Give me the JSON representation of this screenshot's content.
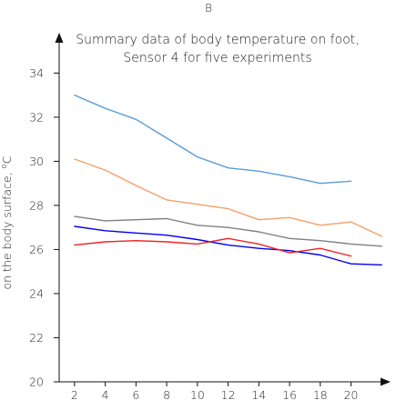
{
  "chart_data": {
    "type": "line",
    "panel_label": "B",
    "title_lines": [
      "Summary data of body temperature on foot,",
      "Sensor 4 for five experiments"
    ],
    "xlabel": "",
    "ylabel_main": "on the body surface, ",
    "ylabel_sup": "o",
    "ylabel_unit": "C",
    "xlim": [
      1,
      22.1
    ],
    "ylim": [
      20,
      35.5
    ],
    "xticks": [
      2,
      4,
      6,
      8,
      10,
      12,
      14,
      16,
      18,
      20
    ],
    "yticks": [
      20,
      22,
      24,
      26,
      28,
      30,
      32,
      34
    ],
    "grid": false,
    "series": [
      {
        "color": "#5b9bd5",
        "x": [
          2,
          4,
          6,
          8,
          10,
          12,
          14,
          16,
          18,
          20
        ],
        "y": [
          33.0,
          32.4,
          31.9,
          31.05,
          30.2,
          29.7,
          29.55,
          29.3,
          29.0,
          29.1
        ]
      },
      {
        "color": "#f4a06a",
        "x": [
          2,
          4,
          6,
          8,
          10,
          12,
          14,
          16,
          18,
          20,
          22
        ],
        "y": [
          30.1,
          29.6,
          28.9,
          28.25,
          28.05,
          27.85,
          27.35,
          27.45,
          27.1,
          27.25,
          26.6
        ]
      },
      {
        "color": "#808080",
        "x": [
          2,
          4,
          6,
          8,
          10,
          12,
          14,
          16,
          18,
          20,
          22
        ],
        "y": [
          27.5,
          27.3,
          27.35,
          27.4,
          27.1,
          27.0,
          26.8,
          26.5,
          26.4,
          26.25,
          26.15
        ]
      },
      {
        "color": "#0000ee",
        "x": [
          2,
          4,
          6,
          8,
          10,
          12,
          14,
          16,
          18,
          20,
          22
        ],
        "y": [
          27.05,
          26.85,
          26.75,
          26.65,
          26.45,
          26.2,
          26.05,
          25.95,
          25.75,
          25.35,
          25.3
        ]
      },
      {
        "color": "#ee2222",
        "x": [
          2,
          4,
          6,
          8,
          10,
          12,
          14,
          16,
          18,
          20
        ],
        "y": [
          26.2,
          26.35,
          26.4,
          26.35,
          26.25,
          26.5,
          26.25,
          25.85,
          26.05,
          25.7
        ]
      }
    ]
  }
}
